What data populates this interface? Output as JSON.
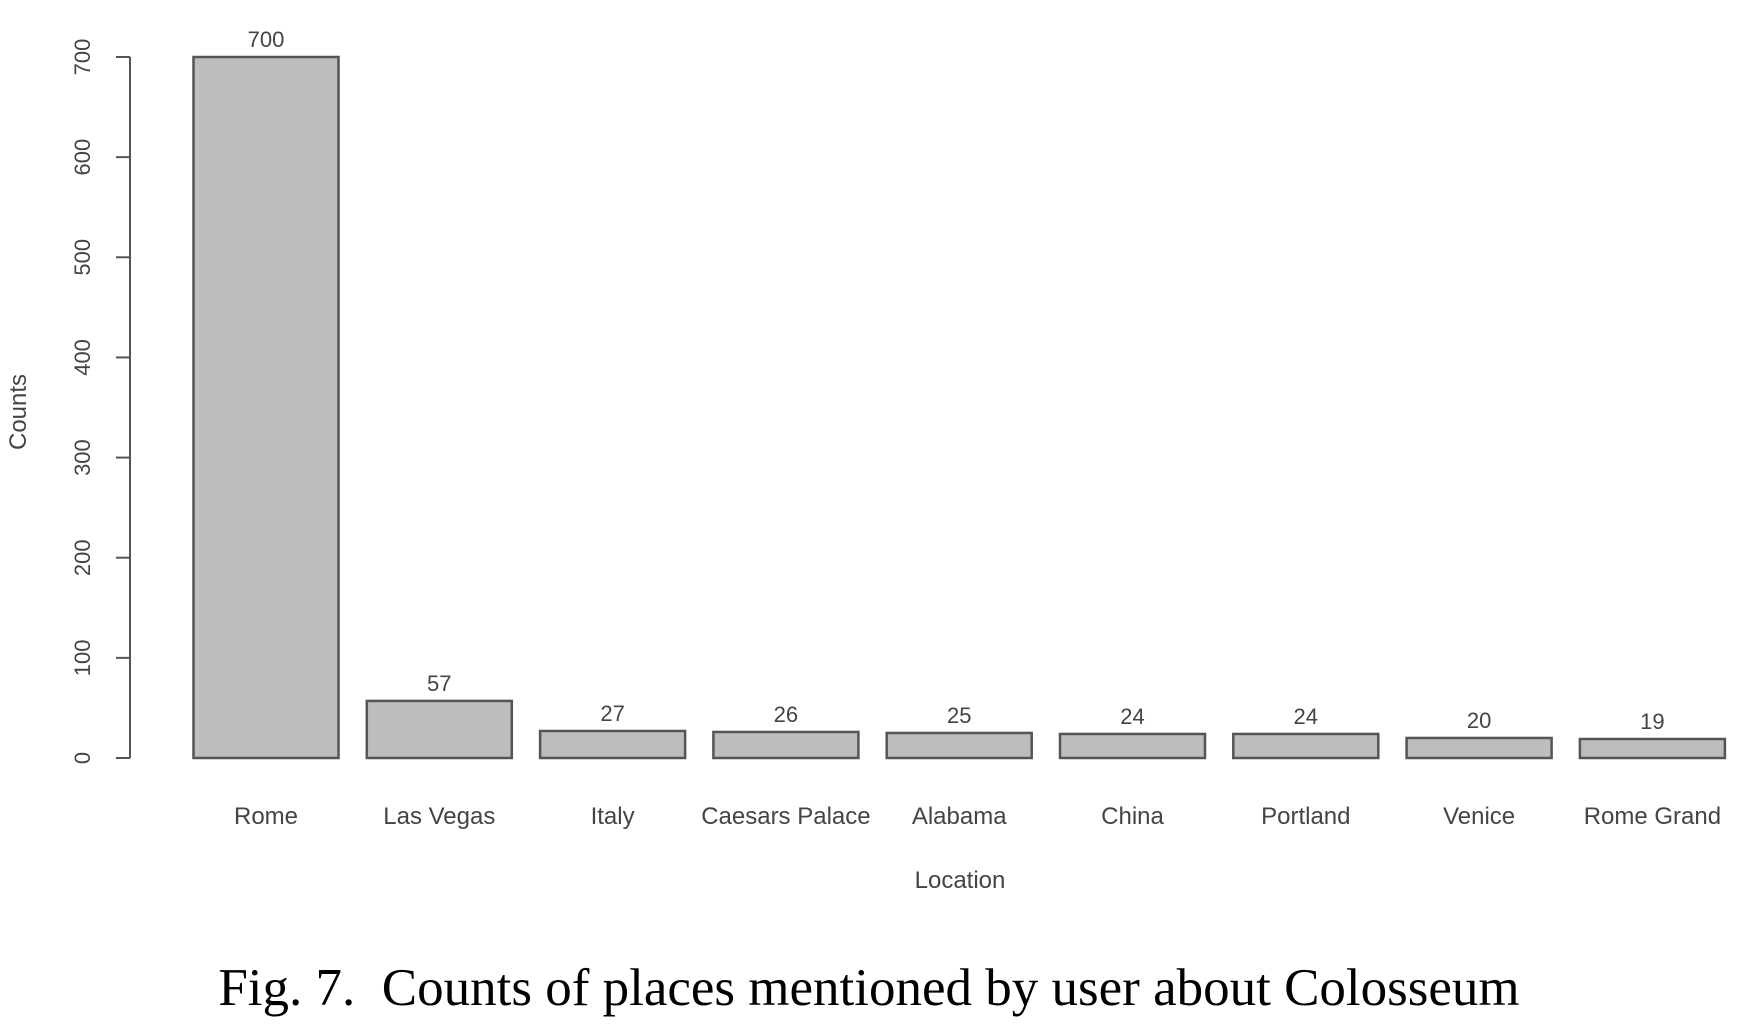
{
  "caption": "Fig. 7.  Counts of places mentioned by user about Colosseum",
  "chart_data": {
    "type": "bar",
    "title": "",
    "xlabel": "Location",
    "ylabel": "Counts",
    "categories": [
      "Rome",
      "Las Vegas",
      "Italy",
      "Caesars Palace",
      "Alabama",
      "China",
      "Portland",
      "Venice",
      "Rome Grand"
    ],
    "values": [
      700,
      57,
      27,
      26,
      25,
      24,
      24,
      20,
      19
    ],
    "ylim": [
      0,
      700
    ],
    "yticks": [
      0,
      100,
      200,
      300,
      400,
      500,
      600,
      700
    ],
    "bar_color": "#bdbdbd",
    "edge_color": "#555555",
    "grid": false,
    "legend": "none"
  }
}
